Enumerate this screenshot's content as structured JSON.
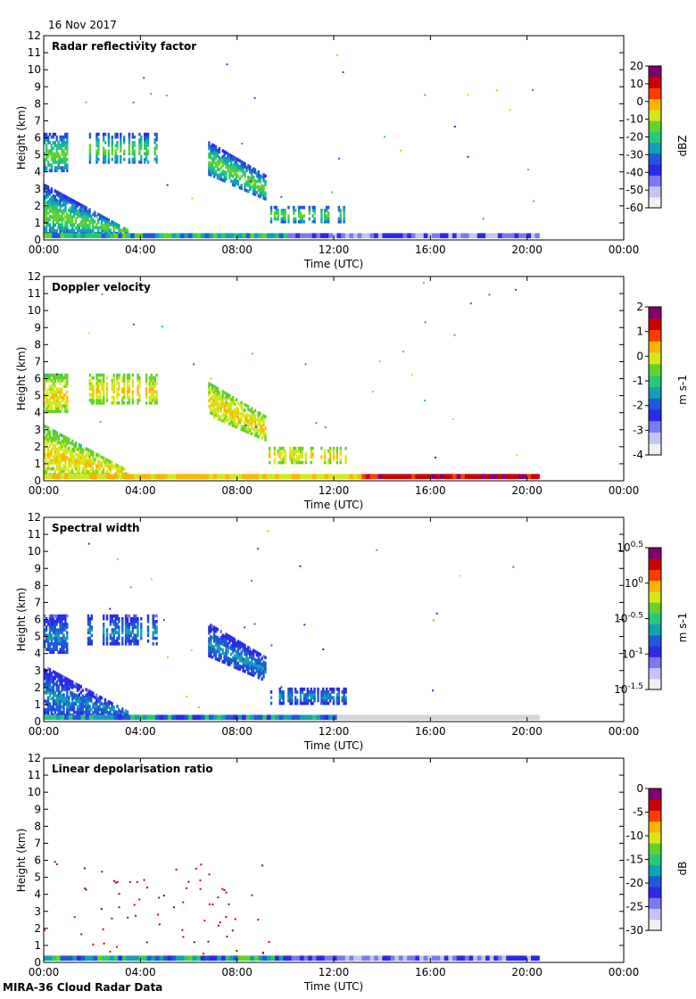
{
  "date": "16 Nov 2017",
  "footer": "MIRA-36 Cloud Radar Data",
  "colormap": [
    "#f0f0f0",
    "#c4c4f6",
    "#7a7aee",
    "#2a2ae8",
    "#1e5ad6",
    "#14a0b4",
    "#28c878",
    "#64d228",
    "#d6e61e",
    "#ffb400",
    "#ff3c00",
    "#cc0000",
    "#82006e"
  ],
  "chart_data": [
    {
      "type": "heatmap",
      "title": "Radar reflectivity factor",
      "xlabel": "Time (UTC)",
      "ylabel": "Height (km)",
      "xticks": [
        "00:00",
        "04:00",
        "08:00",
        "12:00",
        "16:00",
        "20:00",
        "00:00"
      ],
      "yticks": [
        "0",
        "1",
        "2",
        "3",
        "4",
        "5",
        "6",
        "7",
        "8",
        "9",
        "10",
        "11",
        "12"
      ],
      "xlim": [
        0,
        24
      ],
      "ylim": [
        0,
        12
      ],
      "colorbar": {
        "unit": "dBZ",
        "ticks": [
          "20",
          "10",
          "0",
          "-10",
          "-20",
          "-30",
          "-40",
          "-50",
          "-60"
        ],
        "range": [
          -60,
          20
        ]
      },
      "palette": "reflectivity"
    },
    {
      "type": "heatmap",
      "title": "Doppler velocity",
      "xlabel": "Time (UTC)",
      "ylabel": "Height (km)",
      "xticks": [
        "00:00",
        "04:00",
        "08:00",
        "12:00",
        "16:00",
        "20:00",
        "00:00"
      ],
      "yticks": [
        "0",
        "1",
        "2",
        "3",
        "4",
        "5",
        "6",
        "7",
        "8",
        "9",
        "10",
        "11",
        "12"
      ],
      "xlim": [
        0,
        24
      ],
      "ylim": [
        0,
        12
      ],
      "colorbar": {
        "unit": "m s-1",
        "ticks": [
          "2",
          "1",
          "0",
          "-1",
          "-2",
          "-3",
          "-4"
        ],
        "range": [
          -4,
          2
        ]
      },
      "palette": "velocity"
    },
    {
      "type": "heatmap",
      "title": "Spectral width",
      "xlabel": "Time (UTC)",
      "ylabel": "Height (km)",
      "xticks": [
        "00:00",
        "04:00",
        "08:00",
        "12:00",
        "16:00",
        "20:00",
        "00:00"
      ],
      "yticks": [
        "0",
        "1",
        "2",
        "3",
        "4",
        "5",
        "6",
        "7",
        "8",
        "9",
        "10",
        "11",
        "12"
      ],
      "xlim": [
        0,
        24
      ],
      "ylim": [
        0,
        12
      ],
      "colorbar": {
        "unit": "m s-1",
        "ticks": [
          "10^0.5",
          "10^0",
          "10^-0.5",
          "10^-1",
          "10^-1.5"
        ],
        "range": [
          -1.5,
          0.5
        ]
      },
      "palette": "width"
    },
    {
      "type": "heatmap",
      "title": "Linear depolarisation ratio",
      "xlabel": "Time (UTC)",
      "ylabel": "Height (km)",
      "xticks": [
        "00:00",
        "04:00",
        "08:00",
        "12:00",
        "16:00",
        "20:00",
        "00:00"
      ],
      "yticks": [
        "0",
        "1",
        "2",
        "3",
        "4",
        "5",
        "6",
        "7",
        "8",
        "9",
        "10",
        "11",
        "12"
      ],
      "xlim": [
        0,
        24
      ],
      "ylim": [
        0,
        12
      ],
      "colorbar": {
        "unit": "dB",
        "ticks": [
          "0",
          "-5",
          "-10",
          "-15",
          "-20",
          "-25",
          "-30"
        ],
        "range": [
          -30,
          0
        ]
      },
      "palette": "ldr"
    }
  ],
  "echo_regions": {
    "cloud_layers": [
      {
        "name": "low-level cloud",
        "t_start": 0.0,
        "t_end": 3.5,
        "h_bottom": 0.3,
        "h_top": 3.3
      },
      {
        "name": "mid-level cloud early",
        "t_start": 0.0,
        "t_end": 1.0,
        "h_bottom": 4.0,
        "h_top": 6.3
      },
      {
        "name": "mid-level patches",
        "t_start": 1.8,
        "t_end": 4.7,
        "h_bottom": 4.5,
        "h_top": 6.3
      },
      {
        "name": "mid-level cloud",
        "t_start": 6.8,
        "t_end": 9.2,
        "h_bottom": 2.8,
        "h_top": 5.8
      },
      {
        "name": "low patches",
        "t_start": 9.3,
        "t_end": 12.6,
        "h_bottom": 1.0,
        "h_top": 2.0
      },
      {
        "name": "near-surface clutter",
        "t_start": 0.0,
        "t_end": 20.5,
        "h_bottom": 0.0,
        "h_top": 0.4
      }
    ]
  }
}
